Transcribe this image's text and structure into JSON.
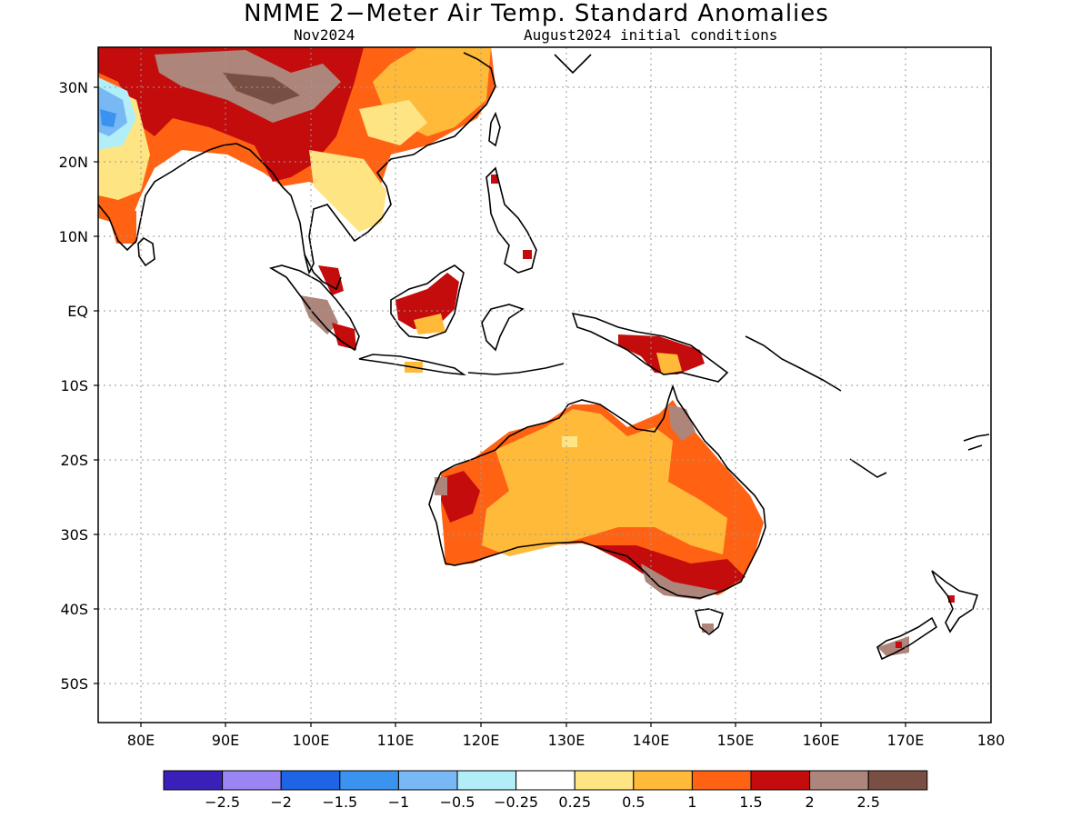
{
  "title": "NMME 2−Meter Air Temp. Standard Anomalies",
  "valid_month": "Nov2024",
  "init_label": "August2024 initial conditions",
  "map": {
    "lat_ticks": [
      "30N",
      "20N",
      "10N",
      "EQ",
      "10S",
      "20S",
      "30S",
      "40S",
      "50S"
    ],
    "lon_ticks": [
      "80E",
      "90E",
      "100E",
      "110E",
      "120E",
      "130E",
      "140E",
      "150E",
      "160E",
      "170E",
      "180"
    ],
    "lat_range": [
      -55,
      35
    ],
    "lon_range": [
      75,
      180
    ],
    "regions": [
      {
        "name": "Tibetan Plateau / South China",
        "category": "1 to 2.5"
      },
      {
        "name": "Southeast China / Indochina",
        "category": "0.5 to 1.5"
      },
      {
        "name": "Borneo",
        "category": "1.5 to 2"
      },
      {
        "name": "New Guinea",
        "category": "1.5 to 2"
      },
      {
        "name": "Australia interior",
        "category": "0.5 to 1"
      },
      {
        "name": "Australia west and south",
        "category": "1 to 2"
      },
      {
        "name": "Southeast Australia",
        "category": "1.5 to 2.5"
      },
      {
        "name": "Northwest India",
        "category": "-1.5 to -0.5"
      }
    ]
  },
  "legend": {
    "colors": [
      "#3a20b8",
      "#9b85f2",
      "#1e64e6",
      "#3b93f0",
      "#78b8f5",
      "#b2eef8",
      "#ffffff",
      "#ffe484",
      "#ffba3a",
      "#ff6213",
      "#c40c0c",
      "#ad857b",
      "#7a4f43"
    ],
    "labels": [
      "−2.5",
      "−2",
      "−1.5",
      "−1",
      "−0.5",
      "−0.25",
      "0.25",
      "0.5",
      "1",
      "1.5",
      "2",
      "2.5"
    ]
  }
}
